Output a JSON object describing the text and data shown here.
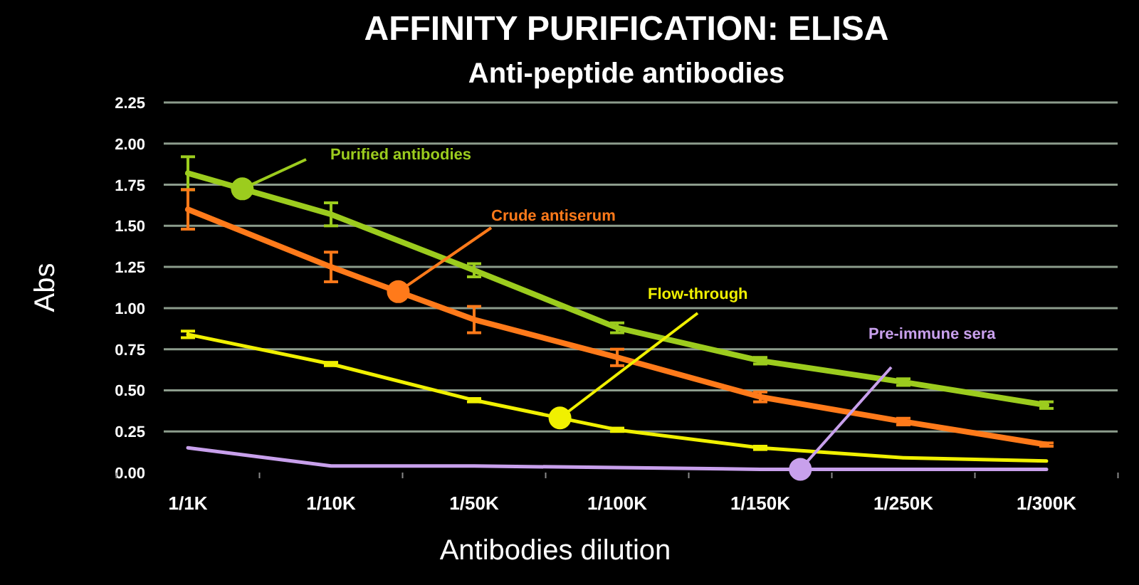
{
  "chart_data": {
    "type": "line",
    "title": "AFFINITY PURIFICATION: ELISA",
    "subtitle": "Anti-peptide antibodies",
    "xlabel": "Antibodies dilution",
    "ylabel": "Abs",
    "categories": [
      "1/1K",
      "1/10K",
      "1/50K",
      "1/100K",
      "1/150K",
      "1/250K",
      "1/300K"
    ],
    "series": [
      {
        "name": "Purified antibodies",
        "color": "#9ccc1e",
        "values": [
          1.82,
          1.57,
          1.23,
          0.88,
          0.68,
          0.55,
          0.41
        ],
        "errors": [
          0.1,
          0.07,
          0.04,
          0.03,
          0.02,
          0.02,
          0.02
        ]
      },
      {
        "name": "Crude antiserum",
        "color": "#ff7a1a",
        "values": [
          1.6,
          1.25,
          0.93,
          0.7,
          0.46,
          0.31,
          0.17
        ],
        "errors": [
          0.12,
          0.09,
          0.08,
          0.05,
          0.03,
          0.02,
          0.01
        ]
      },
      {
        "name": "Flow-through",
        "color": "#f0f000",
        "values": [
          0.84,
          0.66,
          0.44,
          0.26,
          0.15,
          0.09,
          0.07
        ],
        "errors": [
          0.02,
          0.01,
          0.01,
          0.01,
          0.01,
          null,
          null
        ]
      },
      {
        "name": "Pre-immune sera",
        "color": "#c8a0ec",
        "values": [
          0.15,
          0.04,
          0.04,
          0.03,
          0.02,
          0.02,
          0.02
        ]
      }
    ],
    "ylim": [
      0,
      2.25
    ],
    "yticks": [
      {
        "value": 0,
        "label": "0.00"
      },
      {
        "value": 0.25,
        "label": "0.25"
      },
      {
        "value": 0.5,
        "label": "0.50"
      },
      {
        "value": 0.75,
        "label": "0.75"
      },
      {
        "value": 1,
        "label": "1.00"
      },
      {
        "value": 1.25,
        "label": "1.25"
      },
      {
        "value": 1.5,
        "label": "1.50"
      },
      {
        "value": 1.75,
        "label": "1.75"
      },
      {
        "value": 2,
        "label": "2.00"
      },
      {
        "value": 2.25,
        "label": "2.25"
      }
    ],
    "grid": "y",
    "marker": "none",
    "line_style": "solid"
  }
}
